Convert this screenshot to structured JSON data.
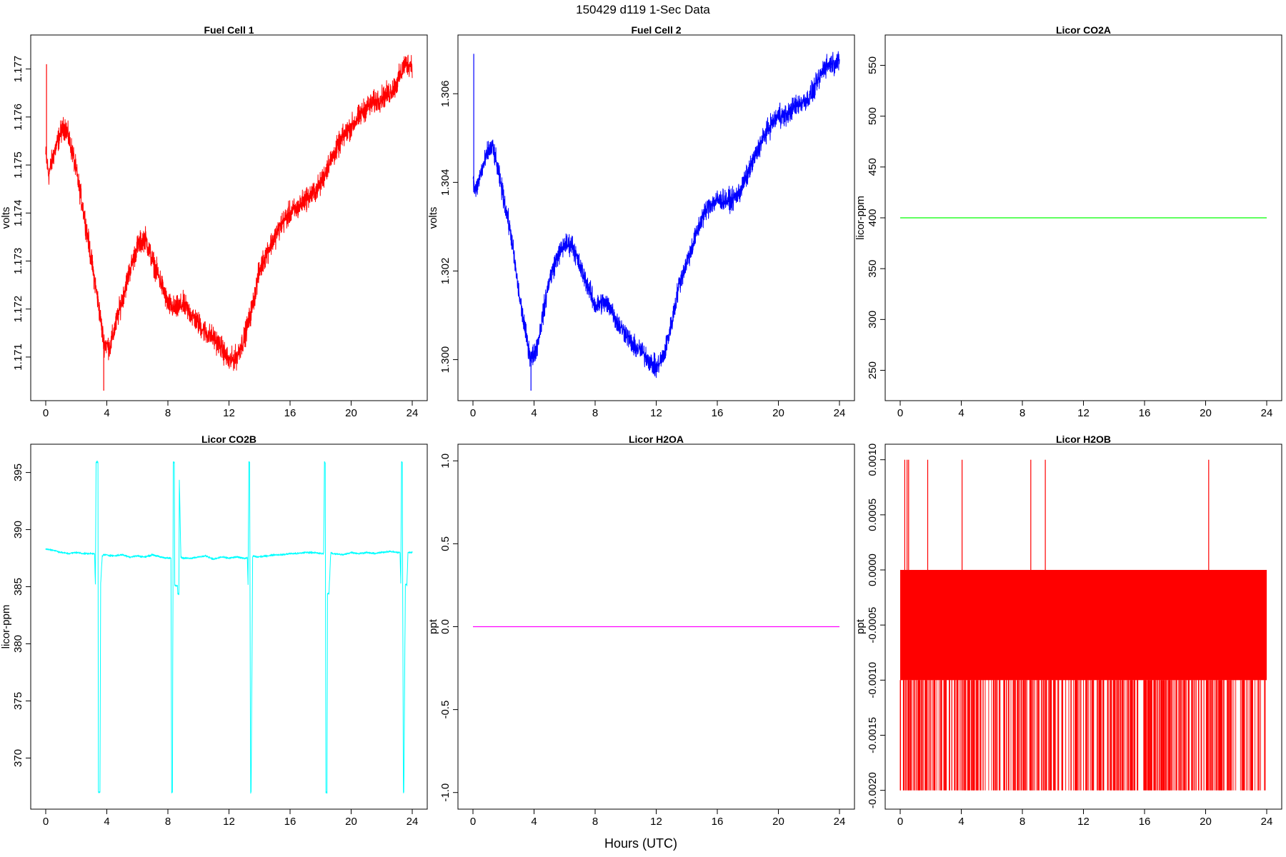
{
  "title": "150429   d119   1-Sec Data",
  "xlabel": "Hours (UTC)",
  "chart_data": [
    {
      "type": "line",
      "title": "Fuel Cell 1",
      "ylabel": "volts",
      "color": "#ff0000",
      "xlim": [
        0,
        24
      ],
      "ylim": [
        1.1703,
        1.1775
      ],
      "xticks": [
        "0",
        "4",
        "8",
        "12",
        "16",
        "20",
        "24"
      ],
      "yticks": [
        "1.171",
        "1.172",
        "1.173",
        "1.174",
        "1.175",
        "1.176",
        "1.177"
      ],
      "noise": 0.00035,
      "series": [
        {
          "x": [
            0,
            0.2,
            0.5,
            1,
            1.3,
            1.8,
            2.5,
            3,
            3.5,
            3.8,
            4.2,
            5,
            5.5,
            6,
            6.5,
            7,
            7.5,
            8,
            8.5,
            9,
            9.5,
            10,
            10.5,
            11,
            11.5,
            12,
            12.5,
            13,
            13.5,
            14,
            14.5,
            15,
            15.5,
            16,
            16.5,
            17,
            17.5,
            18,
            18.5,
            19,
            19.5,
            20,
            20.5,
            21,
            21.5,
            22,
            22.5,
            23,
            23.5,
            24
          ],
          "y": [
            1.1752,
            1.1748,
            1.1752,
            1.1757,
            1.1758,
            1.1752,
            1.174,
            1.173,
            1.172,
            1.1713,
            1.1712,
            1.1722,
            1.1728,
            1.1733,
            1.1735,
            1.173,
            1.1726,
            1.1721,
            1.172,
            1.1721,
            1.1719,
            1.1717,
            1.1715,
            1.1714,
            1.1712,
            1.1709,
            1.171,
            1.1714,
            1.172,
            1.1728,
            1.1732,
            1.1735,
            1.1738,
            1.174,
            1.1741,
            1.1743,
            1.1744,
            1.1746,
            1.175,
            1.1753,
            1.1756,
            1.1758,
            1.176,
            1.1762,
            1.1763,
            1.1764,
            1.1765,
            1.1767,
            1.1771,
            1.1771
          ]
        }
      ],
      "spikes": [
        {
          "x": 0.05,
          "y": 1.1771
        },
        {
          "x": 3.8,
          "y": 1.1703
        }
      ]
    },
    {
      "type": "line",
      "title": "Fuel Cell 2",
      "ylabel": "volts",
      "color": "#0000ff",
      "xlim": [
        0,
        24
      ],
      "ylim": [
        1.2993,
        1.3071
      ],
      "xticks": [
        "0",
        "4",
        "8",
        "12",
        "16",
        "20",
        "24"
      ],
      "yticks": [
        "1.300",
        "1.302",
        "1.304",
        "1.306"
      ],
      "noise": 0.00035,
      "series": [
        {
          "x": [
            0,
            0.2,
            0.5,
            1,
            1.3,
            1.8,
            2.5,
            3,
            3.5,
            3.8,
            4.2,
            5,
            5.5,
            6,
            6.5,
            7,
            7.5,
            8,
            8.5,
            9,
            9.5,
            10,
            10.5,
            11,
            11.5,
            12,
            12.5,
            13,
            13.5,
            14,
            14.5,
            15,
            15.5,
            16,
            16.5,
            17,
            17.5,
            18,
            18.5,
            19,
            19.5,
            20,
            20.5,
            21,
            21.5,
            22,
            22.5,
            23,
            23.5,
            24
          ],
          "y": [
            1.304,
            1.3038,
            1.3042,
            1.3047,
            1.3048,
            1.304,
            1.3028,
            1.3015,
            1.3005,
            1.3,
            1.3003,
            1.3018,
            1.3023,
            1.3026,
            1.3026,
            1.3021,
            1.3017,
            1.3012,
            1.3013,
            1.3012,
            1.3008,
            1.3006,
            1.3003,
            1.3002,
            1.3,
            1.2998,
            1.3001,
            1.3008,
            1.3017,
            1.3022,
            1.3027,
            1.3032,
            1.3035,
            1.3036,
            1.3036,
            1.3036,
            1.3038,
            1.3042,
            1.3046,
            1.305,
            1.3053,
            1.3055,
            1.3055,
            1.3057,
            1.3058,
            1.3059,
            1.3062,
            1.3066,
            1.3067,
            1.3067
          ]
        }
      ],
      "spikes": [
        {
          "x": 0.05,
          "y": 1.3069
        },
        {
          "x": 3.8,
          "y": 1.2993
        },
        {
          "x": 20.1,
          "y": 1.3058
        }
      ]
    },
    {
      "type": "line",
      "title": "Licor CO2A",
      "ylabel": "licor-ppm",
      "color": "#00ff00",
      "xlim": [
        0,
        24
      ],
      "ylim": [
        230,
        570
      ],
      "xticks": [
        "0",
        "4",
        "8",
        "12",
        "16",
        "20",
        "24"
      ],
      "yticks": [
        "250",
        "300",
        "350",
        "400",
        "450",
        "500",
        "550"
      ],
      "series": [
        {
          "x": [
            0,
            24
          ],
          "y": [
            400,
            400
          ]
        }
      ]
    },
    {
      "type": "line",
      "title": "Licor CO2B",
      "ylabel": "licor-ppm",
      "color": "#00ffff",
      "xlim": [
        0,
        24
      ],
      "ylim": [
        366.4,
        396.6
      ],
      "xticks": [
        "0",
        "4",
        "8",
        "12",
        "16",
        "20",
        "24"
      ],
      "yticks": [
        "370",
        "375",
        "380",
        "385",
        "390",
        "395"
      ],
      "noise": 0.12,
      "series": [
        {
          "x": [
            0,
            0.5,
            1,
            1.5,
            2,
            2.5,
            3,
            3.2,
            3.25,
            3.3,
            3.35,
            3.42,
            3.45,
            3.55,
            3.6,
            3.7,
            3.8,
            4.5,
            5,
            5.5,
            6,
            6.5,
            7,
            7.5,
            8,
            8.2,
            8.25,
            8.3,
            8.35,
            8.42,
            8.45,
            8.55,
            8.62,
            8.65,
            8.72,
            8.75,
            8.85,
            9,
            9.5,
            10,
            10.5,
            11,
            11.5,
            12,
            12.5,
            13,
            13.2,
            13.25,
            13.3,
            13.35,
            13.42,
            13.45,
            13.55,
            13.6,
            13.8,
            14.5,
            15,
            15.5,
            16,
            16.5,
            17,
            17.5,
            18,
            18.2,
            18.25,
            18.3,
            18.35,
            18.42,
            18.45,
            18.55,
            18.65,
            18.68,
            18.8,
            19.5,
            20,
            20.5,
            21,
            21.5,
            22,
            22.5,
            23,
            23.2,
            23.25,
            23.3,
            23.35,
            23.42,
            23.45,
            23.55,
            23.62,
            23.65,
            23.72,
            23.75,
            23.85,
            24
          ],
          "y": [
            388.3,
            388.2,
            388.0,
            387.9,
            388.0,
            387.9,
            387.9,
            387.9,
            385.2,
            395.9,
            395.9,
            395.9,
            367.0,
            367.0,
            385.3,
            387.7,
            387.8,
            387.7,
            387.8,
            387.6,
            387.7,
            387.6,
            387.8,
            387.6,
            387.5,
            387.5,
            367.0,
            367.0,
            395.9,
            395.9,
            385.1,
            385.1,
            385.1,
            384.4,
            384.4,
            394.4,
            387.6,
            387.5,
            387.5,
            387.6,
            387.7,
            387.4,
            387.6,
            387.5,
            387.6,
            387.5,
            387.5,
            385.2,
            395.9,
            395.9,
            367.0,
            367.0,
            387.6,
            387.7,
            387.6,
            387.7,
            387.8,
            387.8,
            387.9,
            387.9,
            388.0,
            388.0,
            387.9,
            387.9,
            395.9,
            395.9,
            367.0,
            367.0,
            384.4,
            384.4,
            387.6,
            388.0,
            387.9,
            387.8,
            388.0,
            387.9,
            388.0,
            387.9,
            388.0,
            388.1,
            388.0,
            388.0,
            385.3,
            395.9,
            395.9,
            367.0,
            367.0,
            385.2,
            385.2,
            385.1,
            388.0,
            388.0,
            388.0,
            388.0
          ]
        }
      ]
    },
    {
      "type": "line",
      "title": "Licor H2OA",
      "ylabel": "ppt",
      "color": "#ff00ff",
      "xlim": [
        0,
        24
      ],
      "ylim": [
        -1.04,
        1.04
      ],
      "xticks": [
        "0",
        "4",
        "8",
        "12",
        "16",
        "20",
        "24"
      ],
      "yticks": [
        "-1.0",
        "-0.5",
        "0.0",
        "0.5",
        "1.0"
      ],
      "series": [
        {
          "x": [
            0,
            24
          ],
          "y": [
            0,
            0
          ]
        }
      ]
    },
    {
      "type": "line",
      "title": "Licor H2OB",
      "ylabel": "ppt",
      "color": "#ff0000",
      "xlim": [
        0,
        24
      ],
      "ylim": [
        -0.00208,
        0.00105
      ],
      "xticks": [
        "0",
        "4",
        "8",
        "12",
        "16",
        "20",
        "24"
      ],
      "yticks": [
        "-0.0020",
        "-0.0015",
        "-0.0010",
        "-0.0005",
        "0.0000",
        "0.0005",
        "0.0010"
      ],
      "band": {
        "from": 0.0,
        "to": -0.001,
        "xmin": 0,
        "xmax": 24
      },
      "low_value": -0.002,
      "high_value": 0.001,
      "high_spikes_x": [
        0.3,
        0.45,
        0.55,
        1.8,
        4.05,
        8.55,
        9.5,
        20.2
      ]
    }
  ]
}
